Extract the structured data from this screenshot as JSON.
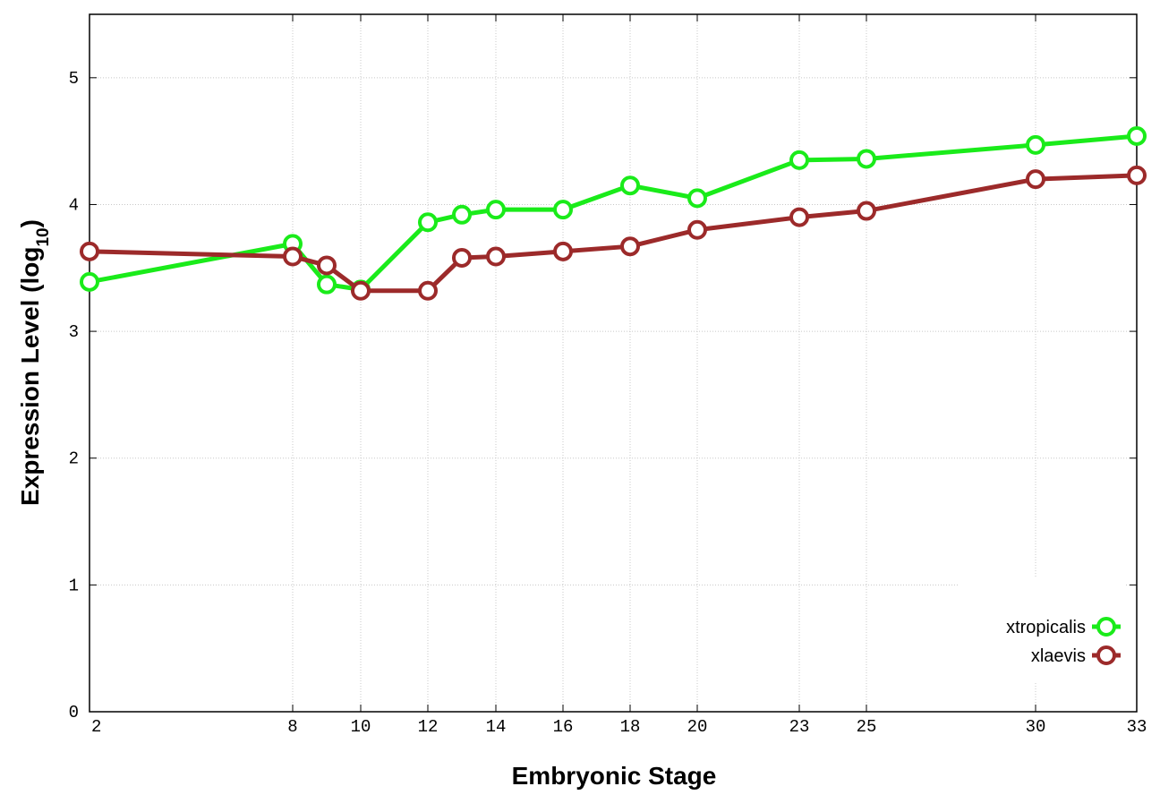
{
  "chart_data": {
    "type": "line",
    "xlabel": "Embryonic Stage",
    "ylabel_main": "Expression Level (log",
    "ylabel_sub": "10",
    "ylabel_close": ")",
    "x_tick_labels": [
      "2",
      "8",
      "10",
      "12",
      "14",
      "16",
      "18",
      "20",
      "23",
      "25",
      "30",
      "33"
    ],
    "y_ticks": [
      0,
      1,
      2,
      3,
      4,
      5
    ],
    "ylim": [
      0,
      5.5
    ],
    "grid": true,
    "legend_position": "bottom-right",
    "series": [
      {
        "name": "xtropicalis",
        "color": "#1aeb1a",
        "points": [
          {
            "x": "2",
            "y": 3.39
          },
          {
            "x": "8",
            "y": 3.69
          },
          {
            "x": "9",
            "y": 3.37
          },
          {
            "x": "10",
            "y": 3.33
          },
          {
            "x": "12",
            "y": 3.86
          },
          {
            "x": "13",
            "y": 3.92
          },
          {
            "x": "14",
            "y": 3.96
          },
          {
            "x": "16",
            "y": 3.96
          },
          {
            "x": "18",
            "y": 4.15
          },
          {
            "x": "20",
            "y": 4.05
          },
          {
            "x": "23",
            "y": 4.35
          },
          {
            "x": "25",
            "y": 4.36
          },
          {
            "x": "30",
            "y": 4.47
          },
          {
            "x": "33",
            "y": 4.54
          }
        ]
      },
      {
        "name": "xlaevis",
        "color": "#9c2a2a",
        "points": [
          {
            "x": "2",
            "y": 3.63
          },
          {
            "x": "8",
            "y": 3.59
          },
          {
            "x": "9",
            "y": 3.52
          },
          {
            "x": "10",
            "y": 3.32
          },
          {
            "x": "12",
            "y": 3.32
          },
          {
            "x": "13",
            "y": 3.58
          },
          {
            "x": "14",
            "y": 3.59
          },
          {
            "x": "16",
            "y": 3.63
          },
          {
            "x": "18",
            "y": 3.67
          },
          {
            "x": "20",
            "y": 3.8
          },
          {
            "x": "23",
            "y": 3.9
          },
          {
            "x": "25",
            "y": 3.95
          },
          {
            "x": "30",
            "y": 4.2
          },
          {
            "x": "33",
            "y": 4.23
          }
        ]
      }
    ]
  }
}
